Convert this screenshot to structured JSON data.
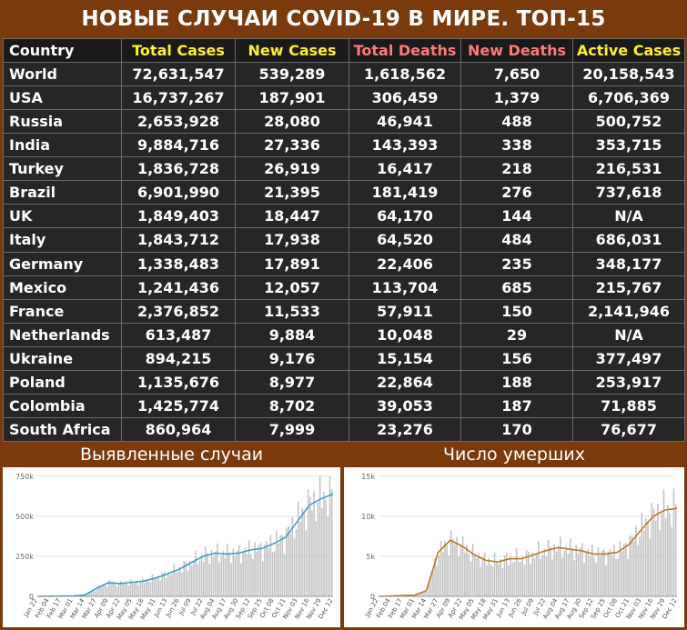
{
  "title": "НОВЫЕ СЛУЧАИ COVID-19 В МИРЕ. ТОП-15",
  "colors": {
    "header_yellow": "#ffee33",
    "header_red": "#ff7b7b",
    "brand_brown": "#7a3a0c",
    "cases_line": "#3aa0c8",
    "deaths_line": "#b77a2a"
  },
  "table": {
    "headers": [
      "Country",
      "Total Cases",
      "New Cases",
      "Total Deaths",
      "New Deaths",
      "Active Cases"
    ],
    "rows": [
      [
        "World",
        "72,631,547",
        "539,289",
        "1,618,562",
        "7,650",
        "20,158,543"
      ],
      [
        "USA",
        "16,737,267",
        "187,901",
        "306,459",
        "1,379",
        "6,706,369"
      ],
      [
        "Russia",
        "2,653,928",
        "28,080",
        "46,941",
        "488",
        "500,752"
      ],
      [
        "India",
        "9,884,716",
        "27,336",
        "143,393",
        "338",
        "353,715"
      ],
      [
        "Turkey",
        "1,836,728",
        "26,919",
        "16,417",
        "218",
        "216,531"
      ],
      [
        "Brazil",
        "6,901,990",
        "21,395",
        "181,419",
        "276",
        "737,618"
      ],
      [
        "UK",
        "1,849,403",
        "18,447",
        "64,170",
        "144",
        "N/A"
      ],
      [
        "Italy",
        "1,843,712",
        "17,938",
        "64,520",
        "484",
        "686,031"
      ],
      [
        "Germany",
        "1,338,483",
        "17,891",
        "22,406",
        "235",
        "348,177"
      ],
      [
        "Mexico",
        "1,241,436",
        "12,057",
        "113,704",
        "685",
        "215,767"
      ],
      [
        "France",
        "2,376,852",
        "11,533",
        "57,911",
        "150",
        "2,141,946"
      ],
      [
        "Netherlands",
        "613,487",
        "9,884",
        "10,048",
        "29",
        "N/A"
      ],
      [
        "Ukraine",
        "894,215",
        "9,176",
        "15,154",
        "156",
        "377,497"
      ],
      [
        "Poland",
        "1,135,676",
        "8,977",
        "22,864",
        "188",
        "253,917"
      ],
      [
        "Colombia",
        "1,425,774",
        "8,702",
        "39,053",
        "187",
        "71,885"
      ],
      [
        "South Africa",
        "860,964",
        "7,999",
        "23,276",
        "170",
        "76,677"
      ]
    ]
  },
  "chart_data": [
    {
      "type": "bar",
      "title": "Выявленные случаи",
      "ylim": [
        0,
        750000
      ],
      "ytick_labels": [
        "0",
        "250k",
        "500k",
        "750k"
      ],
      "xtick_labels": [
        "Jan 22",
        "Feb 04",
        "Feb 17",
        "Mar 01",
        "Mar 14",
        "Mar 27",
        "Apr 09",
        "Apr 22",
        "May 05",
        "May 18",
        "May 31",
        "Jun 13",
        "Jun 26",
        "Jul 09",
        "Jul 22",
        "Aug 04",
        "Aug 17",
        "Aug 30",
        "Sep 12",
        "Sep 25",
        "Oct 08",
        "Oct 21",
        "Nov 03",
        "Nov 16",
        "Nov 29",
        "Dec 12"
      ],
      "series": [
        {
          "values": [
            0,
            1000,
            2000,
            2000,
            8000,
            50000,
            85000,
            80000,
            88000,
            95000,
            115000,
            140000,
            170000,
            210000,
            250000,
            270000,
            265000,
            270000,
            290000,
            300000,
            330000,
            370000,
            470000,
            570000,
            610000,
            640000
          ]
        }
      ]
    },
    {
      "type": "bar",
      "title": "Число умерших",
      "ylim": [
        0,
        15000
      ],
      "ytick_labels": [
        "0",
        "5k",
        "10k",
        "15k"
      ],
      "xtick_labels": [
        "Jan 22",
        "Feb 04",
        "Feb 17",
        "Mar 01",
        "Mar 14",
        "Mar 27",
        "Apr 09",
        "Apr 22",
        "May 05",
        "May 18",
        "May 31",
        "Jun 13",
        "Jun 26",
        "Jul 09",
        "Jul 22",
        "Aug 04",
        "Aug 17",
        "Aug 30",
        "Sep 12",
        "Sep 25",
        "Oct 08",
        "Oct 21",
        "Nov 03",
        "Nov 16",
        "Nov 29",
        "Dec 12"
      ],
      "series": [
        {
          "values": [
            0,
            50,
            100,
            150,
            700,
            5500,
            7000,
            6300,
            5200,
            4500,
            4300,
            4700,
            4700,
            5200,
            5700,
            6100,
            5900,
            5700,
            5300,
            5300,
            5500,
            6500,
            8300,
            10000,
            10800,
            11000
          ]
        }
      ]
    }
  ]
}
